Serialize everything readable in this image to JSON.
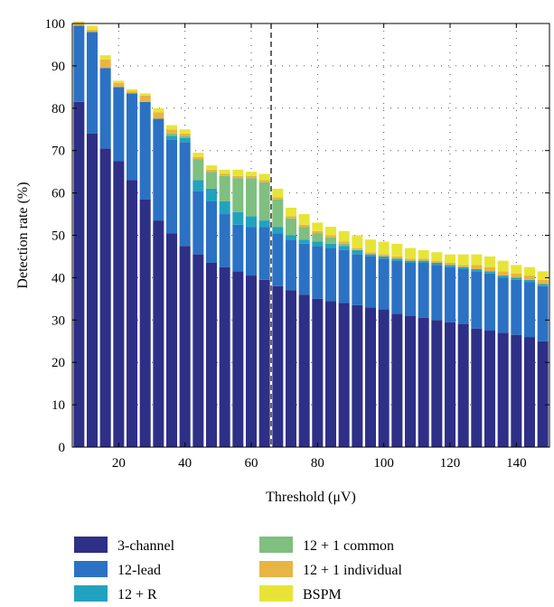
{
  "chart_data": {
    "type": "bar",
    "stacked": true,
    "xlabel": "Threshold (μV)",
    "ylabel": "Detection rate (%)",
    "xlim": [
      6,
      150
    ],
    "ylim": [
      0,
      100
    ],
    "x_ticks": [
      20,
      40,
      60,
      80,
      100,
      120,
      140
    ],
    "y_ticks": [
      0,
      10,
      20,
      30,
      40,
      50,
      60,
      70,
      80,
      90,
      100
    ],
    "grid": "dotted",
    "reference_line": {
      "x": 66,
      "style": "dashed"
    },
    "legend_position": "below",
    "x": [
      8,
      12,
      16,
      20,
      24,
      28,
      32,
      36,
      40,
      44,
      48,
      52,
      56,
      60,
      64,
      68,
      72,
      76,
      80,
      84,
      88,
      92,
      96,
      100,
      104,
      108,
      112,
      116,
      120,
      124,
      128,
      132,
      136,
      140,
      144,
      148
    ],
    "series": [
      {
        "name": "3-channel",
        "color": "#2e2f86",
        "values": [
          81.5,
          74,
          70.5,
          67.5,
          63,
          58.5,
          53.5,
          50.5,
          47.5,
          45.5,
          43.5,
          42.5,
          41.5,
          40.5,
          39.5,
          38,
          37,
          36,
          35,
          34.5,
          34,
          33.5,
          33,
          32.5,
          31.5,
          31,
          30.5,
          30,
          29.5,
          29,
          28,
          27.5,
          27,
          26.5,
          26,
          25
        ]
      },
      {
        "name": "12-lead",
        "color": "#2b72c4",
        "values": [
          18,
          24,
          19,
          17.5,
          20.5,
          23,
          24,
          22,
          24.5,
          15,
          14.5,
          12.5,
          11,
          11.5,
          12.5,
          12.5,
          12,
          12,
          12.5,
          12.5,
          12.5,
          12,
          12,
          12,
          12.5,
          12.5,
          13,
          13,
          13,
          13,
          13.5,
          13.5,
          13,
          13,
          13,
          13
        ]
      },
      {
        "name": "12 + R",
        "color": "#23a2bf",
        "values": [
          0,
          0,
          0,
          0,
          0,
          0,
          0,
          1,
          1,
          2.5,
          3,
          3,
          3,
          2.5,
          1.5,
          1.5,
          1,
          1,
          1,
          1,
          1,
          1,
          0.5,
          0.5,
          0.5,
          0.5,
          0.5,
          0.5,
          0.5,
          0.5,
          0.5,
          0.5,
          0.5,
          0.5,
          0.5,
          0.5
        ]
      },
      {
        "name": "12 + 1 common",
        "color": "#7fbf7f",
        "values": [
          0,
          0,
          0,
          0,
          0,
          0,
          0,
          0.5,
          0.5,
          5,
          4,
          6,
          8,
          9,
          9,
          6.5,
          4,
          3,
          2,
          1.5,
          0.5,
          0,
          0,
          0,
          0,
          0,
          0,
          0,
          0,
          0,
          0,
          0,
          0,
          0,
          0,
          0
        ]
      },
      {
        "name": "12 + 1 individual",
        "color": "#e8b444",
        "values": [
          0.5,
          0.5,
          2,
          1,
          0.5,
          1.5,
          1.5,
          1,
          0.5,
          0.5,
          0.5,
          0.5,
          0.5,
          0.5,
          0.5,
          0.5,
          0.5,
          0.5,
          0.5,
          0.5,
          0.5,
          0.5,
          0.5,
          0.5,
          0.5,
          0.5,
          0.5,
          0.5,
          0.5,
          0.5,
          1,
          1,
          1,
          1,
          1,
          1
        ]
      },
      {
        "name": "BSPM",
        "color": "#e8e437",
        "values": [
          0.5,
          1,
          1,
          0.5,
          0.5,
          0.5,
          1,
          1,
          1,
          1,
          1,
          1,
          1.5,
          1,
          1.5,
          2,
          2,
          2.5,
          2,
          2,
          2.5,
          3,
          3,
          3,
          3,
          2.5,
          2,
          2,
          2,
          2.5,
          2.5,
          2.5,
          2.5,
          2,
          2,
          2
        ]
      }
    ]
  }
}
